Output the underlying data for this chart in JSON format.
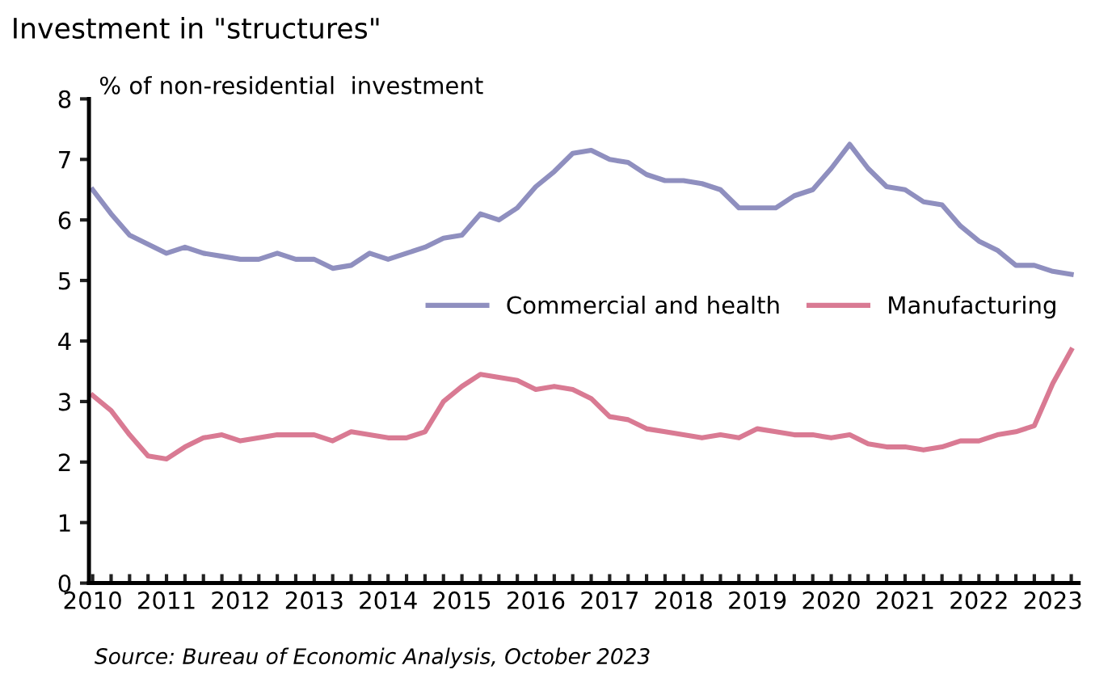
{
  "chart_data": {
    "type": "line",
    "title": "Investment in \"structures\"",
    "ylabel": "% of non-residential  investment",
    "annotations": [
      "Source: Bureau of Economic Analysis, October 2023"
    ],
    "x": [
      2010,
      2010.25,
      2010.5,
      2010.75,
      2011,
      2011.25,
      2011.5,
      2011.75,
      2012,
      2012.25,
      2012.5,
      2012.75,
      2013,
      2013.25,
      2013.5,
      2013.75,
      2014,
      2014.25,
      2014.5,
      2014.75,
      2015,
      2015.25,
      2015.5,
      2015.75,
      2016,
      2016.25,
      2016.5,
      2016.75,
      2017,
      2017.25,
      2017.5,
      2017.75,
      2018,
      2018.25,
      2018.5,
      2018.75,
      2019,
      2019.25,
      2019.5,
      2019.75,
      2020,
      2020.25,
      2020.5,
      2020.75,
      2021,
      2021.25,
      2021.5,
      2021.75,
      2022,
      2022.25,
      2022.5,
      2022.75,
      2023,
      2023.25
    ],
    "series": [
      {
        "name": "Commercial and health",
        "color": "#8f8fbf",
        "values": [
          6.5,
          6.1,
          5.75,
          5.6,
          5.45,
          5.55,
          5.45,
          5.4,
          5.35,
          5.35,
          5.45,
          5.35,
          5.35,
          5.2,
          5.25,
          5.45,
          5.35,
          5.45,
          5.55,
          5.7,
          5.75,
          6.1,
          6.0,
          6.2,
          6.55,
          6.8,
          7.1,
          7.15,
          7.0,
          6.95,
          6.75,
          6.65,
          6.65,
          6.6,
          6.5,
          6.2,
          6.2,
          6.2,
          6.4,
          6.5,
          6.85,
          7.25,
          6.85,
          6.55,
          6.5,
          6.3,
          6.25,
          5.9,
          5.65,
          5.5,
          5.25,
          5.25,
          5.15,
          5.1
        ]
      },
      {
        "name": "Manufacturing",
        "color": "#d97a93",
        "values": [
          3.1,
          2.85,
          2.45,
          2.1,
          2.05,
          2.25,
          2.4,
          2.45,
          2.35,
          2.4,
          2.45,
          2.45,
          2.45,
          2.35,
          2.5,
          2.45,
          2.4,
          2.4,
          2.5,
          3.0,
          3.25,
          3.45,
          3.4,
          3.35,
          3.2,
          3.25,
          3.2,
          3.05,
          2.75,
          2.7,
          2.55,
          2.5,
          2.45,
          2.4,
          2.45,
          2.4,
          2.55,
          2.5,
          2.45,
          2.45,
          2.4,
          2.45,
          2.3,
          2.25,
          2.25,
          2.2,
          2.25,
          2.35,
          2.35,
          2.45,
          2.5,
          2.6,
          3.3,
          3.85
        ]
      }
    ],
    "xlim": [
      2009.95,
      2023.35
    ],
    "xticks": [
      2010,
      {
        "value": 2010.25,
        "label": null
      },
      {
        "value": 2010.5,
        "label": null
      },
      {
        "value": 2010.75,
        "label": null
      },
      2011,
      {
        "value": 2011.25,
        "label": null
      },
      {
        "value": 2011.5,
        "label": null
      },
      {
        "value": 2011.75,
        "label": null
      },
      2012,
      {
        "value": 2012.25,
        "label": null
      },
      {
        "value": 2012.5,
        "label": null
      },
      {
        "value": 2012.75,
        "label": null
      },
      2013,
      {
        "value": 2013.25,
        "label": null
      },
      {
        "value": 2013.5,
        "label": null
      },
      {
        "value": 2013.75,
        "label": null
      },
      2014,
      {
        "value": 2014.25,
        "label": null
      },
      {
        "value": 2014.5,
        "label": null
      },
      {
        "value": 2014.75,
        "label": null
      },
      2015,
      {
        "value": 2015.25,
        "label": null
      },
      {
        "value": 2015.5,
        "label": null
      },
      {
        "value": 2015.75,
        "label": null
      },
      2016,
      {
        "value": 2016.25,
        "label": null
      },
      {
        "value": 2016.5,
        "label": null
      },
      {
        "value": 2016.75,
        "label": null
      },
      2017,
      {
        "value": 2017.25,
        "label": null
      },
      {
        "value": 2017.5,
        "label": null
      },
      {
        "value": 2017.75,
        "label": null
      },
      2018,
      {
        "value": 2018.25,
        "label": null
      },
      {
        "value": 2018.5,
        "label": null
      },
      {
        "value": 2018.75,
        "label": null
      },
      2019,
      {
        "value": 2019.25,
        "label": null
      },
      {
        "value": 2019.5,
        "label": null
      },
      {
        "value": 2019.75,
        "label": null
      },
      2020,
      {
        "value": 2020.25,
        "label": null
      },
      {
        "value": 2020.5,
        "label": null
      },
      {
        "value": 2020.75,
        "label": null
      },
      2021,
      {
        "value": 2021.25,
        "label": null
      },
      {
        "value": 2021.5,
        "label": null
      },
      {
        "value": 2021.75,
        "label": null
      },
      2022,
      {
        "value": 2022.25,
        "label": null
      },
      {
        "value": 2022.5,
        "label": null
      },
      {
        "value": 2022.75,
        "label": null
      },
      2023,
      {
        "value": 2023.25,
        "label": null
      }
    ],
    "ylim": [
      0,
      8
    ],
    "yticks": [
      0,
      1,
      2,
      3,
      4,
      5,
      6,
      7,
      8
    ],
    "grid": false,
    "legend": "center right",
    "marker": "none",
    "line_style": "solid"
  }
}
